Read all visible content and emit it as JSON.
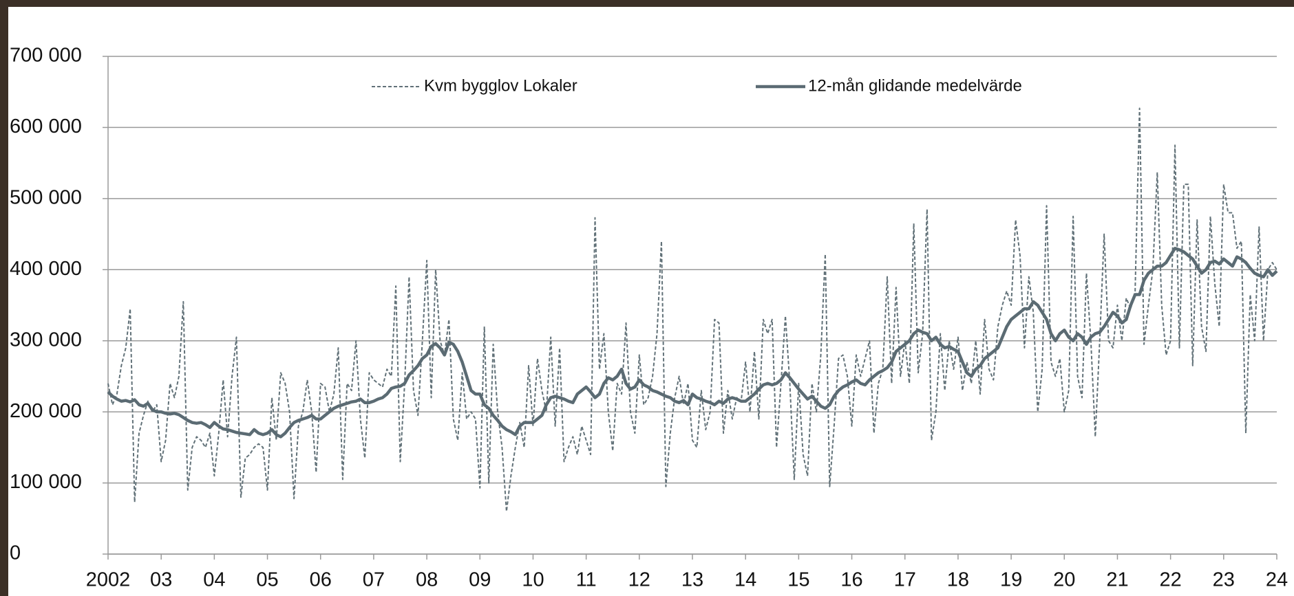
{
  "chart_data": {
    "type": "line",
    "categories": [
      "2002",
      null,
      null,
      null,
      null,
      null,
      null,
      null,
      null,
      null,
      null,
      null,
      "03",
      null,
      null,
      null,
      null,
      null,
      null,
      null,
      null,
      null,
      null,
      null,
      "04",
      null,
      null,
      null,
      null,
      null,
      null,
      null,
      null,
      null,
      null,
      null,
      "05",
      null,
      null,
      null,
      null,
      null,
      null,
      null,
      null,
      null,
      null,
      null,
      "06",
      null,
      null,
      null,
      null,
      null,
      null,
      null,
      null,
      null,
      null,
      null,
      "07",
      null,
      null,
      null,
      null,
      null,
      null,
      null,
      null,
      null,
      null,
      null,
      "08",
      null,
      null,
      null,
      null,
      null,
      null,
      null,
      null,
      null,
      null,
      null,
      "09",
      null,
      null,
      null,
      null,
      null,
      null,
      null,
      null,
      null,
      null,
      null,
      "10",
      null,
      null,
      null,
      null,
      null,
      null,
      null,
      null,
      null,
      null,
      null,
      "11",
      null,
      null,
      null,
      null,
      null,
      null,
      null,
      null,
      null,
      null,
      null,
      "12",
      null,
      null,
      null,
      null,
      null,
      null,
      null,
      null,
      null,
      null,
      null,
      "13",
      null,
      null,
      null,
      null,
      null,
      null,
      null,
      null,
      null,
      null,
      null,
      "14",
      null,
      null,
      null,
      null,
      null,
      null,
      null,
      null,
      null,
      null,
      null,
      "15",
      null,
      null,
      null,
      null,
      null,
      null,
      null,
      null,
      null,
      null,
      null,
      "16",
      null,
      null,
      null,
      null,
      null,
      null,
      null,
      null,
      null,
      null,
      null,
      "17",
      null,
      null,
      null,
      null,
      null,
      null,
      null,
      null,
      null,
      null,
      null,
      "18",
      null,
      null,
      null,
      null,
      null,
      null,
      null,
      null,
      null,
      null,
      null,
      "19",
      null,
      null,
      null,
      null,
      null,
      null,
      null,
      null,
      null,
      null,
      null,
      "20",
      null,
      null,
      null,
      null,
      null,
      null,
      null,
      null,
      null,
      null,
      null,
      "21",
      null,
      null,
      null,
      null,
      null,
      null,
      null,
      null,
      null,
      null,
      null,
      "22",
      null,
      null,
      null,
      null,
      null,
      null,
      null,
      null,
      null,
      null,
      null,
      "23",
      null,
      null,
      null,
      null,
      null,
      null,
      null,
      null,
      null,
      null,
      null,
      "24"
    ],
    "series": [
      {
        "name": "Kvm bygglov Lokaler",
        "color": "#617178",
        "line_style": "dashed",
        "values": [
          240000,
          210000,
          225000,
          265000,
          290000,
          345000,
          73000,
          170000,
          195000,
          215000,
          200000,
          210000,
          130000,
          160000,
          240000,
          220000,
          250000,
          355000,
          90000,
          150000,
          165000,
          160000,
          150000,
          170000,
          110000,
          170000,
          245000,
          165000,
          250000,
          305000,
          80000,
          135000,
          140000,
          150000,
          155000,
          150000,
          90000,
          220000,
          160000,
          255000,
          240000,
          200000,
          78000,
          180000,
          200000,
          245000,
          200000,
          115000,
          240000,
          235000,
          200000,
          225000,
          290000,
          105000,
          240000,
          230000,
          300000,
          190000,
          135000,
          255000,
          245000,
          240000,
          235000,
          260000,
          250000,
          377000,
          130000,
          240000,
          390000,
          230000,
          195000,
          300000,
          413000,
          220000,
          400000,
          300000,
          280000,
          330000,
          190000,
          160000,
          255000,
          190000,
          200000,
          190000,
          93000,
          320000,
          100000,
          295000,
          200000,
          150000,
          60000,
          110000,
          150000,
          185000,
          150000,
          265000,
          180000,
          275000,
          230000,
          200000,
          305000,
          180000,
          290000,
          130000,
          150000,
          165000,
          140000,
          180000,
          160000,
          140000,
          473000,
          260000,
          310000,
          200000,
          145000,
          240000,
          225000,
          325000,
          200000,
          170000,
          280000,
          210000,
          220000,
          250000,
          310000,
          440000,
          95000,
          170000,
          220000,
          250000,
          210000,
          240000,
          160000,
          150000,
          230000,
          175000,
          200000,
          330000,
          325000,
          170000,
          230000,
          190000,
          220000,
          215000,
          270000,
          200000,
          285000,
          190000,
          330000,
          310000,
          330000,
          150000,
          240000,
          335000,
          240000,
          105000,
          240000,
          140000,
          110000,
          240000,
          200000,
          280000,
          422000,
          95000,
          180000,
          275000,
          280000,
          250000,
          180000,
          280000,
          250000,
          275000,
          300000,
          170000,
          240000,
          260000,
          390000,
          240000,
          375000,
          250000,
          300000,
          240000,
          465000,
          255000,
          310000,
          485000,
          160000,
          200000,
          310000,
          230000,
          300000,
          260000,
          305000,
          230000,
          270000,
          240000,
          300000,
          225000,
          330000,
          260000,
          245000,
          320000,
          350000,
          370000,
          350000,
          470000,
          420000,
          290000,
          390000,
          340000,
          200000,
          260000,
          490000,
          270000,
          250000,
          275000,
          200000,
          230000,
          475000,
          250000,
          220000,
          395000,
          300000,
          165000,
          300000,
          450000,
          300000,
          290000,
          350000,
          300000,
          360000,
          345000,
          370000,
          627000,
          295000,
          350000,
          400000,
          537000,
          350000,
          280000,
          300000,
          575000,
          290000,
          520000,
          520000,
          265000,
          470000,
          320000,
          285000,
          475000,
          380000,
          320000,
          520000,
          480000,
          480000,
          430000,
          440000,
          170000,
          365000,
          300000,
          460000,
          300000,
          400000,
          410000,
          400000
        ]
      },
      {
        "name": "12-mån glidande medelvärde",
        "color": "#5b6b73",
        "line_style": "solid",
        "values": [
          228000,
          222000,
          218000,
          215000,
          216000,
          214000,
          217000,
          210000,
          208000,
          212000,
          203000,
          200000,
          200000,
          198000,
          197000,
          198000,
          196000,
          192000,
          188000,
          185000,
          184000,
          185000,
          182000,
          178000,
          185000,
          180000,
          176000,
          175000,
          173000,
          171000,
          170000,
          169000,
          168000,
          175000,
          170000,
          168000,
          170000,
          175000,
          168000,
          165000,
          170000,
          178000,
          185000,
          188000,
          190000,
          192000,
          195000,
          190000,
          190000,
          195000,
          200000,
          205000,
          208000,
          210000,
          212000,
          214000,
          215000,
          218000,
          213000,
          213000,
          215000,
          218000,
          220000,
          225000,
          233000,
          235000,
          236000,
          240000,
          252000,
          258000,
          265000,
          275000,
          280000,
          292000,
          296000,
          290000,
          280000,
          298000,
          295000,
          285000,
          270000,
          250000,
          230000,
          225000,
          225000,
          210000,
          205000,
          195000,
          188000,
          180000,
          175000,
          172000,
          168000,
          180000,
          185000,
          185000,
          185000,
          190000,
          195000,
          210000,
          220000,
          222000,
          220000,
          218000,
          215000,
          213000,
          225000,
          230000,
          235000,
          228000,
          220000,
          225000,
          240000,
          248000,
          245000,
          250000,
          260000,
          240000,
          232000,
          235000,
          245000,
          238000,
          235000,
          230000,
          228000,
          225000,
          222000,
          220000,
          215000,
          213000,
          216000,
          210000,
          225000,
          220000,
          218000,
          215000,
          213000,
          210000,
          215000,
          212000,
          218000,
          220000,
          218000,
          215000,
          215000,
          220000,
          225000,
          232000,
          238000,
          240000,
          238000,
          240000,
          245000,
          255000,
          248000,
          240000,
          232000,
          225000,
          218000,
          222000,
          215000,
          208000,
          205000,
          210000,
          222000,
          230000,
          235000,
          238000,
          242000,
          245000,
          240000,
          238000,
          245000,
          250000,
          255000,
          258000,
          262000,
          270000,
          285000,
          290000,
          295000,
          300000,
          310000,
          315000,
          312000,
          310000,
          300000,
          305000,
          295000,
          290000,
          292000,
          288000,
          285000,
          270000,
          255000,
          250000,
          260000,
          265000,
          275000,
          280000,
          285000,
          290000,
          305000,
          320000,
          330000,
          335000,
          340000,
          345000,
          345000,
          355000,
          350000,
          340000,
          330000,
          310000,
          300000,
          310000,
          315000,
          305000,
          300000,
          310000,
          305000,
          295000,
          305000,
          310000,
          312000,
          320000,
          330000,
          340000,
          335000,
          325000,
          330000,
          350000,
          365000,
          365000,
          385000,
          395000,
          400000,
          405000,
          405000,
          410000,
          420000,
          430000,
          428000,
          425000,
          420000,
          415000,
          405000,
          395000,
          400000,
          410000,
          412000,
          408000,
          415000,
          410000,
          405000,
          418000,
          415000,
          410000,
          402000,
          395000,
          392000,
          390000,
          400000,
          392000,
          398000
        ]
      }
    ],
    "ylim": [
      0,
      700000
    ],
    "yticks": [
      0,
      {
        "value": 100000,
        "label": "100 000"
      },
      {
        "value": 200000,
        "label": "200 000"
      },
      {
        "value": 300000,
        "label": "300 000"
      },
      {
        "value": 400000,
        "label": "400 000"
      },
      {
        "value": 500000,
        "label": "500 000"
      },
      {
        "value": 600000,
        "label": "600 000"
      },
      {
        "value": 700000,
        "label": "700 000"
      }
    ],
    "grid": true,
    "legend": "top"
  }
}
